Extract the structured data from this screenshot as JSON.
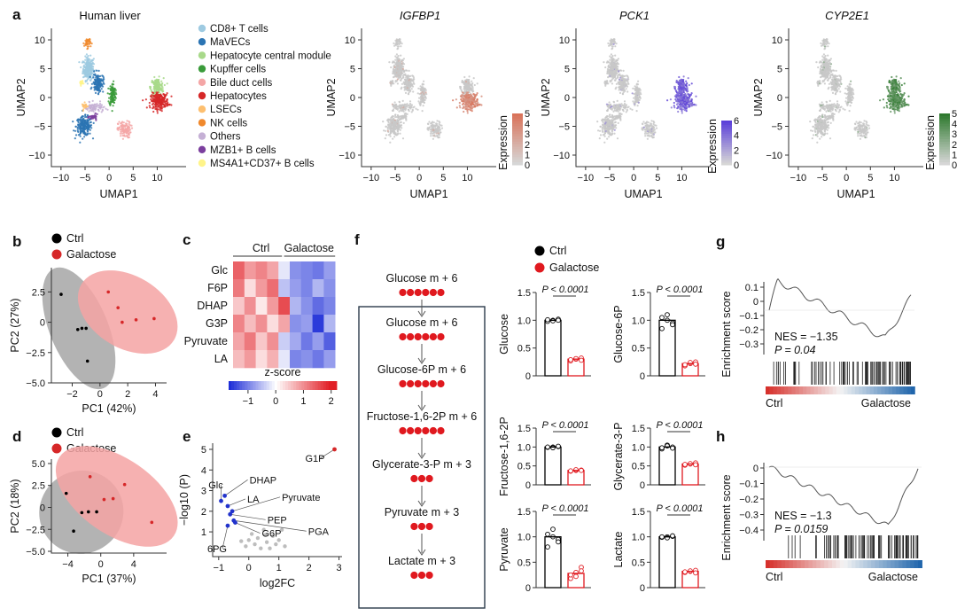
{
  "panel_labels": [
    "a",
    "b",
    "c",
    "d",
    "e",
    "f",
    "g",
    "h"
  ],
  "chart_data": [
    {
      "id": "a-clusters",
      "type": "scatter",
      "title": "Human liver",
      "xlabel": "UMAP1",
      "ylabel": "UMAP2",
      "xlim": [
        -12,
        16
      ],
      "ylim": [
        -12,
        12
      ],
      "xticks": [
        -10,
        -5,
        0,
        5,
        10
      ],
      "yticks": [
        10,
        5,
        0,
        -5,
        -10
      ],
      "legend": [
        {
          "label": "CD8+ T cells",
          "color": "#9ecae1"
        },
        {
          "label": "MaVECs",
          "color": "#2b74b3"
        },
        {
          "label": "Hepatocyte central module",
          "color": "#a8d98a"
        },
        {
          "label": "Kupffer cells",
          "color": "#3a9b3a"
        },
        {
          "label": "Bile duct cells",
          "color": "#f4a6a6"
        },
        {
          "label": "Hepatocytes",
          "color": "#d62728"
        },
        {
          "label": "LSECs",
          "color": "#fdbf6f"
        },
        {
          "label": "NK cells",
          "color": "#f0892d"
        },
        {
          "label": "Others",
          "color": "#c5b0d5"
        },
        {
          "label": "MZB1+ B cells",
          "color": "#7b3f9e"
        },
        {
          "label": "MS4A1+CD37+ B cells",
          "color": "#fff48a"
        }
      ]
    },
    {
      "id": "a-IGFBP1",
      "type": "scatter",
      "title": "IGFBP1",
      "xlabel": "UMAP1",
      "ylabel": "UMAP2",
      "colorbar": {
        "label": "Expression",
        "ticks": [
          "5",
          "4",
          "3",
          "2",
          "1",
          "0"
        ],
        "color": "#d9735a"
      }
    },
    {
      "id": "a-PCK1",
      "type": "scatter",
      "title": "PCK1",
      "xlabel": "UMAP1",
      "ylabel": "UMAP2",
      "colorbar": {
        "label": "Expression",
        "ticks": [
          "6",
          "4",
          "2",
          "0"
        ],
        "color": "#5b3fd9"
      }
    },
    {
      "id": "a-CYP2E1",
      "type": "scatter",
      "title": "CYP2E1",
      "xlabel": "UMAP1",
      "ylabel": "UMAP2",
      "colorbar": {
        "label": "Expression",
        "ticks": [
          "5",
          "4",
          "3",
          "2",
          "1",
          "0"
        ],
        "color": "#2f7a2f"
      }
    },
    {
      "id": "b",
      "type": "scatter",
      "xlabel": "PC1 (42%)",
      "ylabel": "PC2 (27%)",
      "xlim": [
        -3.5,
        4.8
      ],
      "ylim": [
        -5,
        4.5
      ],
      "xticks": [
        -2,
        0,
        2,
        4
      ],
      "yticks": [
        2.5,
        0,
        -2.5,
        -5
      ],
      "legend": [
        "Ctrl",
        "Galactose"
      ],
      "series": [
        {
          "name": "Ctrl",
          "points": [
            [
              -2.8,
              2.3
            ],
            [
              -1.6,
              -0.6
            ],
            [
              -1.3,
              -0.5
            ],
            [
              -1.0,
              -0.5
            ],
            [
              -0.9,
              -3.2
            ]
          ]
        },
        {
          "name": "Galactose",
          "points": [
            [
              0.6,
              2.5
            ],
            [
              1.3,
              1.2
            ],
            [
              1.6,
              0.0
            ],
            [
              2.6,
              0.2
            ],
            [
              3.9,
              0.3
            ]
          ]
        }
      ]
    },
    {
      "id": "c",
      "type": "heatmap",
      "groups": [
        "Ctrl",
        "Galactose"
      ],
      "rows": [
        "Glc",
        "F6P",
        "DHAP",
        "G3P",
        "Pyruvate",
        "LA"
      ],
      "colorbar_label": "z-score",
      "colorbar_ticks": [
        "−1",
        "0",
        "1",
        "2"
      ],
      "values": [
        [
          1.4,
          0.9,
          1.1,
          0.8,
          -0.2,
          -0.9,
          -1.0,
          -1.1,
          -0.8
        ],
        [
          1.2,
          0.3,
          0.9,
          1.3,
          -0.5,
          -0.8,
          -1.0,
          -0.6,
          -0.9
        ],
        [
          0.5,
          1.0,
          0.2,
          0.9,
          1.6,
          -0.6,
          -0.9,
          -1.2,
          -1.0
        ],
        [
          1.1,
          0.6,
          1.0,
          0.3,
          0.8,
          -0.9,
          -0.8,
          -1.6,
          -0.6
        ],
        [
          0.8,
          1.2,
          0.5,
          1.0,
          -0.4,
          -0.7,
          -1.1,
          -0.8,
          -1.3
        ],
        [
          0.6,
          0.9,
          0.3,
          0.7,
          -0.2,
          -1.0,
          -0.9,
          -1.1,
          -0.8
        ]
      ]
    },
    {
      "id": "d",
      "type": "scatter",
      "xlabel": "PC1 (37%)",
      "ylabel": "PC2 (18%)",
      "xlim": [
        -6,
        8
      ],
      "ylim": [
        -5.2,
        5.5
      ],
      "xticks": [
        -4,
        0,
        4
      ],
      "yticks": [
        5.0,
        2.5,
        0,
        -2.5,
        -5.0
      ],
      "legend": [
        "Ctrl",
        "Galactose"
      ],
      "series": [
        {
          "name": "Ctrl",
          "points": [
            [
              -4.2,
              1.6
            ],
            [
              -2.3,
              -0.6
            ],
            [
              -1.5,
              -0.5
            ],
            [
              -0.5,
              -0.5
            ],
            [
              -3.3,
              -2.7
            ]
          ]
        },
        {
          "name": "Galactose",
          "points": [
            [
              -1.3,
              3.5
            ],
            [
              2.9,
              2.6
            ],
            [
              0.4,
              0.9
            ],
            [
              1.5,
              1.0
            ],
            [
              6.2,
              -1.7
            ]
          ]
        }
      ]
    },
    {
      "id": "e",
      "type": "scatter",
      "xlabel": "log2FC",
      "ylabel": "−log10 (P)",
      "xlim": [
        -1.2,
        3.1
      ],
      "ylim": [
        -0.2,
        5.3
      ],
      "xticks": [
        -1,
        0,
        1,
        2,
        3
      ],
      "yticks": [
        1,
        2,
        3,
        4,
        5
      ],
      "labeled": [
        {
          "label": "G1P",
          "x": 2.85,
          "y": 5.0,
          "color": "#d62728"
        },
        {
          "label": "Glc",
          "x": -0.92,
          "y": 2.5,
          "color": "#2233cc"
        },
        {
          "label": "DHAP",
          "x": -0.8,
          "y": 2.75,
          "color": "#2233cc"
        },
        {
          "label": "LA",
          "x": -0.7,
          "y": 2.25,
          "color": "#2233cc"
        },
        {
          "label": "Pyruvate",
          "x": -0.55,
          "y": 2.0,
          "color": "#2233cc"
        },
        {
          "label": "PEP",
          "x": -0.62,
          "y": 1.85,
          "color": "#2233cc"
        },
        {
          "label": "PGA",
          "x": -0.5,
          "y": 1.55,
          "color": "#2233cc"
        },
        {
          "label": "G6P",
          "x": -0.45,
          "y": 1.45,
          "color": "#2233cc"
        },
        {
          "label": "6PG",
          "x": -0.7,
          "y": 1.3,
          "color": "#2233cc"
        }
      ],
      "background_points": [
        [
          0.1,
          0.9
        ],
        [
          0.3,
          0.7
        ],
        [
          0.5,
          1.1
        ],
        [
          0.2,
          0.4
        ],
        [
          0.6,
          0.5
        ],
        [
          0.8,
          0.8
        ],
        [
          1.0,
          0.6
        ],
        [
          1.1,
          1.1
        ],
        [
          -0.1,
          0.3
        ],
        [
          0.4,
          0.2
        ],
        [
          0.7,
          0.2
        ],
        [
          0.9,
          0.4
        ],
        [
          0.0,
          0.6
        ],
        [
          0.55,
          0.85
        ],
        [
          1.2,
          0.3
        ],
        [
          -0.25,
          0.55
        ]
      ]
    },
    {
      "id": "f-scheme",
      "type": "table",
      "steps": [
        {
          "label": "Glucose m + 6",
          "labeled_carbons": 6
        },
        {
          "label": "Glucose m + 6",
          "labeled_carbons": 6
        },
        {
          "label": "Glucose-6P m + 6",
          "labeled_carbons": 6
        },
        {
          "label": "Fructose-1,6-2P m + 6",
          "labeled_carbons": 6
        },
        {
          "label": "Glycerate-3-P m + 3",
          "labeled_carbons": 3
        },
        {
          "label": "Pyruvate m + 3",
          "labeled_carbons": 3
        },
        {
          "label": "Lactate m + 3",
          "labeled_carbons": 3
        }
      ]
    },
    {
      "id": "f-bars",
      "type": "bar",
      "legend": [
        "Ctrl",
        "Galactose"
      ],
      "pvalue": "P < 0.0001",
      "ylim": [
        0,
        1.5
      ],
      "yticks": [
        "0",
        "0.5",
        "1.0",
        "1.5"
      ],
      "panels": [
        {
          "ylabel": "Glucose",
          "values": [
            1.0,
            0.3
          ],
          "ctrl_points": [
            0.98,
            1.0,
            1.02,
            1.01,
            0.99,
            1.0
          ],
          "gal_points": [
            0.27,
            0.3,
            0.32,
            0.29,
            0.31,
            0.28
          ]
        },
        {
          "ylabel": "Glucose-6P",
          "values": [
            1.0,
            0.22
          ],
          "ctrl_points": [
            0.85,
            1.1,
            0.95,
            1.05,
            1.0,
            0.92
          ],
          "gal_points": [
            0.18,
            0.22,
            0.25,
            0.2,
            0.24,
            0.21
          ]
        },
        {
          "ylabel": "Fructose-1,6-2P",
          "values": [
            1.0,
            0.38
          ],
          "ctrl_points": [
            0.99,
            1.0,
            1.01,
            1.0,
            0.98,
            1.02
          ],
          "gal_points": [
            0.36,
            0.38,
            0.39,
            0.37,
            0.4,
            0.38
          ]
        },
        {
          "ylabel": "Glycerate-3-P",
          "values": [
            1.0,
            0.55
          ],
          "ctrl_points": [
            0.95,
            1.05,
            1.0,
            0.98,
            1.03,
            0.97
          ],
          "gal_points": [
            0.52,
            0.55,
            0.58,
            0.54,
            0.56,
            0.53
          ]
        },
        {
          "ylabel": "Pyruvate",
          "values": [
            1.0,
            0.28
          ],
          "ctrl_points": [
            0.8,
            1.15,
            0.95,
            1.05,
            1.0,
            0.9
          ],
          "gal_points": [
            0.18,
            0.3,
            0.4,
            0.25,
            0.22,
            0.33
          ]
        },
        {
          "ylabel": "Lactate",
          "values": [
            1.0,
            0.32
          ],
          "ctrl_points": [
            0.99,
            1.0,
            1.01,
            1.0,
            0.98,
            1.02
          ],
          "gal_points": [
            0.3,
            0.32,
            0.34,
            0.31,
            0.33,
            0.29
          ]
        }
      ]
    },
    {
      "id": "g",
      "type": "line",
      "ylabel": "Enrichment score",
      "yticks": [
        "0.1",
        "0",
        "−0.1",
        "−0.2",
        "−0.3"
      ],
      "annotation": [
        "NES = −1.35",
        "P = 0.04"
      ],
      "xlabels": [
        "Ctrl",
        "Galactose"
      ]
    },
    {
      "id": "h",
      "type": "line",
      "ylabel": "Enrichment score",
      "yticks": [
        "0",
        "−0.1",
        "−0.2",
        "−0.3",
        "−0.4"
      ],
      "annotation": [
        "NES = −1.3",
        "P = 0.0159"
      ],
      "xlabels": [
        "Ctrl",
        "Galactose"
      ]
    }
  ]
}
